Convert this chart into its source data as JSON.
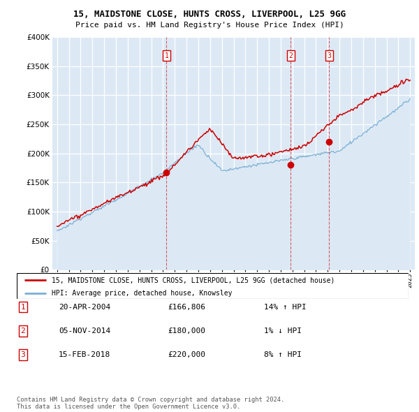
{
  "title": "15, MAIDSTONE CLOSE, HUNTS CROSS, LIVERPOOL, L25 9GG",
  "subtitle": "Price paid vs. HM Land Registry's House Price Index (HPI)",
  "legend_line1": "15, MAIDSTONE CLOSE, HUNTS CROSS, LIVERPOOL, L25 9GG (detached house)",
  "legend_line2": "HPI: Average price, detached house, Knowsley",
  "transactions": [
    {
      "num": 1,
      "date": "20-APR-2004",
      "price": "£166,806",
      "hpi": "14% ↑ HPI",
      "year": 2004.3
    },
    {
      "num": 2,
      "date": "05-NOV-2014",
      "price": "£180,000",
      "hpi": "1% ↓ HPI",
      "year": 2014.85
    },
    {
      "num": 3,
      "date": "15-FEB-2018",
      "price": "£220,000",
      "hpi": "8% ↑ HPI",
      "year": 2018.12
    }
  ],
  "transaction_prices": [
    166806,
    180000,
    220000
  ],
  "footer": "Contains HM Land Registry data © Crown copyright and database right 2024.\nThis data is licensed under the Open Government Licence v3.0.",
  "ylim": [
    0,
    400000
  ],
  "yticks": [
    0,
    50000,
    100000,
    150000,
    200000,
    250000,
    300000,
    350000,
    400000
  ],
  "xlim_start": 1994.6,
  "xlim_end": 2025.4,
  "red_color": "#cc0000",
  "blue_color": "#7bafd4",
  "blue_fill": "#dce9f5",
  "plot_bg": "#dce9f5"
}
